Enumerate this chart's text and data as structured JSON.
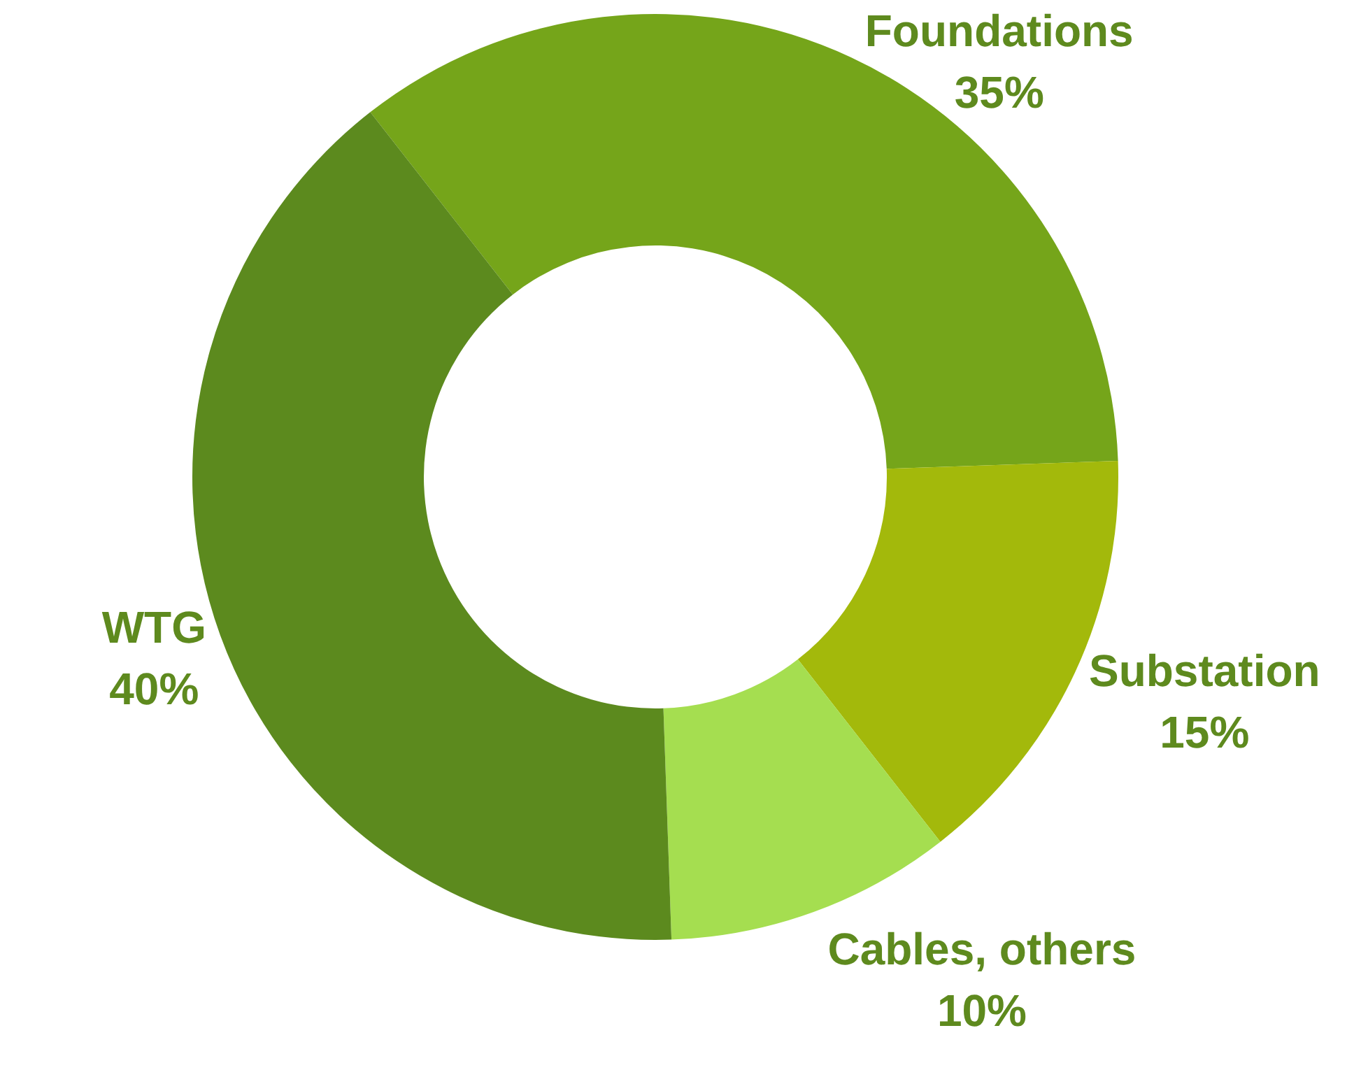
{
  "chart_data": {
    "type": "donut",
    "categories": [
      "Foundations",
      "Substation",
      "Cables, others",
      "WTG"
    ],
    "values": [
      35,
      15,
      10,
      40
    ],
    "value_labels": [
      "35%",
      "15%",
      "10%",
      "40%"
    ],
    "colors": [
      "#75a51a",
      "#a3b90b",
      "#a5de50",
      "#5c8a1e"
    ],
    "legend": false
  }
}
